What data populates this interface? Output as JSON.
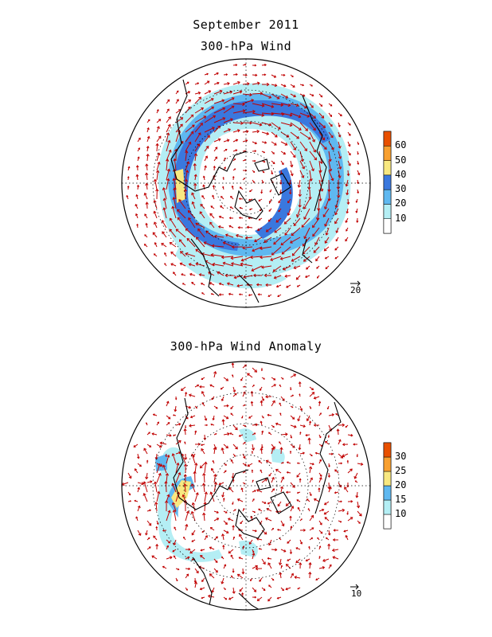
{
  "header": {
    "month_title": "September 2011",
    "panel1_title": "300-hPa Wind",
    "panel2_title": "300-hPa Wind Anomaly"
  },
  "panel1": {
    "reference_vector_label": "20",
    "colorbar": {
      "labels": [
        "10",
        "20",
        "30",
        "40",
        "50",
        "60"
      ],
      "colors": [
        "#ffffff",
        "#b4eef4",
        "#5fb8f0",
        "#3a78de",
        "#f8e880",
        "#f8a030",
        "#e85000"
      ]
    }
  },
  "panel2": {
    "reference_vector_label": "10",
    "colorbar": {
      "labels": [
        "10",
        "15",
        "20",
        "25",
        "30"
      ],
      "colors": [
        "#ffffff",
        "#b4eef4",
        "#5fb8f0",
        "#f8e880",
        "#f8a030",
        "#e85000"
      ]
    }
  },
  "colors": {
    "vector": "#c00000",
    "coast": "#000000",
    "grid": "#000000"
  }
}
